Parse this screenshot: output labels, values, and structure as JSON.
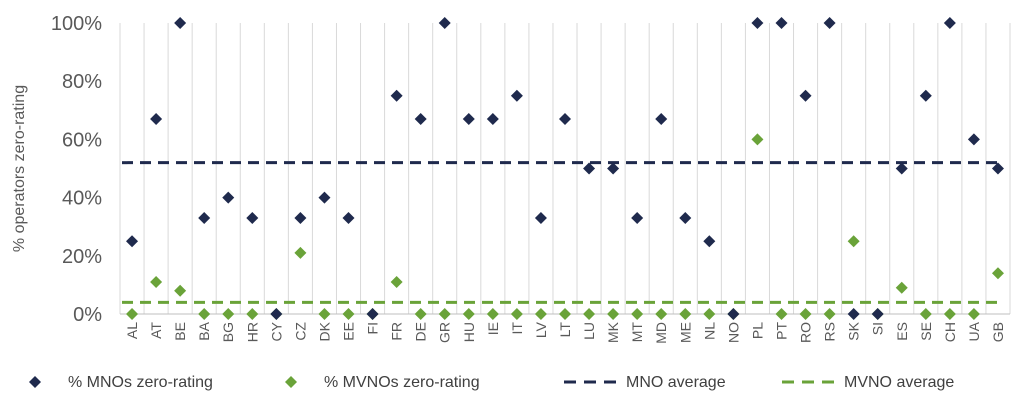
{
  "chart_data": {
    "type": "scatter",
    "ylabel": "% operators zero-rating",
    "xlabel": "",
    "ylim": [
      0,
      100
    ],
    "yticks": [
      0,
      20,
      40,
      60,
      80,
      100
    ],
    "ytick_labels": [
      "0%",
      "20%",
      "40%",
      "60%",
      "80%",
      "100%"
    ],
    "grid": "vertical",
    "legend": "bottom",
    "categories": [
      "AL",
      "AT",
      "BE",
      "BA",
      "BG",
      "HR",
      "CY",
      "CZ",
      "DK",
      "EE",
      "FI",
      "FR",
      "DE",
      "GR",
      "HU",
      "IE",
      "IT",
      "LV",
      "LT",
      "LU",
      "MK",
      "MT",
      "MD",
      "ME",
      "NL",
      "NO",
      "PL",
      "PT",
      "RO",
      "RS",
      "SK",
      "SI",
      "ES",
      "SE",
      "CH",
      "UA",
      "GB"
    ],
    "series": [
      {
        "name": "% MNOs zero-rating",
        "kind": "points",
        "color": "#1f2a4d",
        "values": [
          25,
          67,
          100,
          33,
          40,
          33,
          0,
          33,
          40,
          33,
          0,
          75,
          67,
          100,
          67,
          67,
          75,
          33,
          67,
          50,
          50,
          33,
          67,
          33,
          25,
          0,
          100,
          100,
          75,
          100,
          0,
          0,
          50,
          75,
          100,
          60,
          50
        ]
      },
      {
        "name": "% MVNOs zero-rating",
        "kind": "points",
        "color": "#6aa339",
        "values": [
          0,
          11,
          8,
          0,
          0,
          0,
          0,
          21,
          0,
          0,
          0,
          11,
          0,
          0,
          0,
          0,
          0,
          0,
          0,
          0,
          0,
          0,
          0,
          0,
          0,
          0,
          60,
          0,
          0,
          0,
          25,
          0,
          9,
          0,
          0,
          0,
          14
        ]
      },
      {
        "name": "MNO average",
        "kind": "average",
        "color": "#1f2a4d",
        "value": 52
      },
      {
        "name": "MVNO average",
        "kind": "average",
        "color": "#6aa339",
        "value": 4
      }
    ]
  }
}
